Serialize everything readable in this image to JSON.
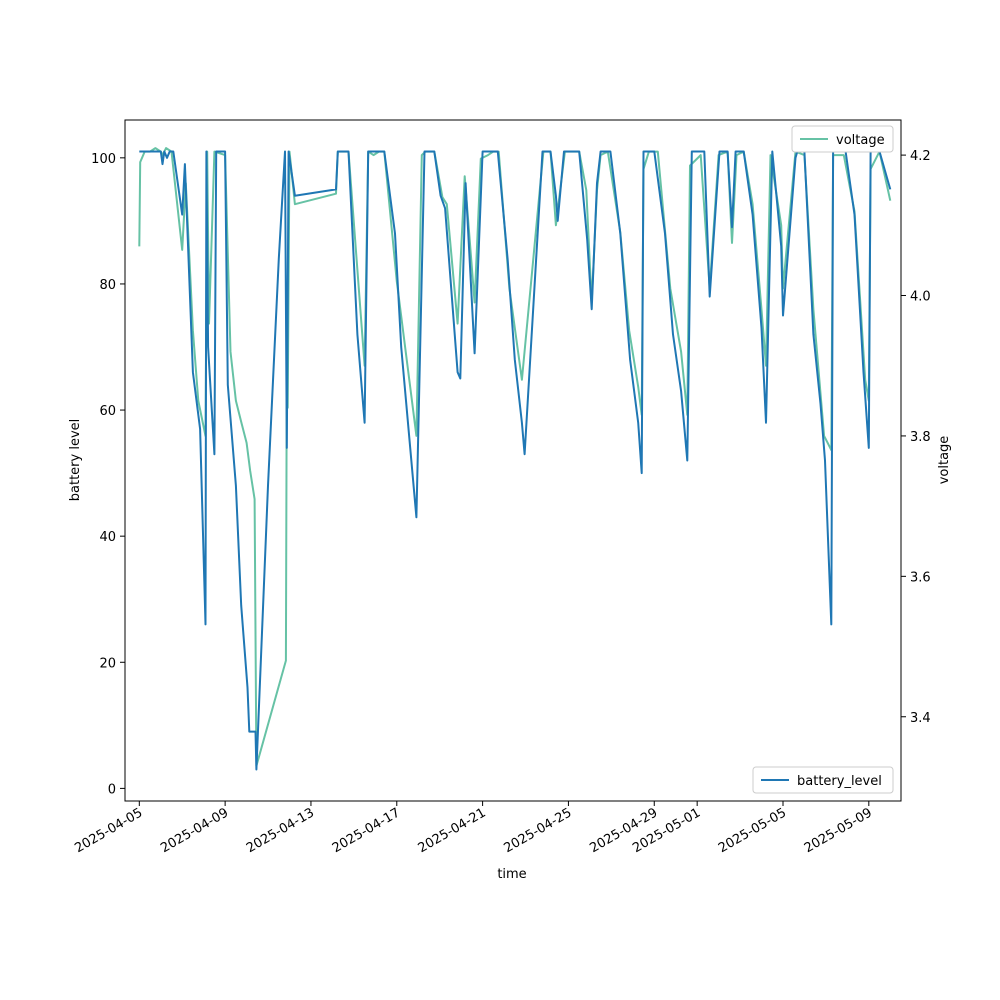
{
  "chart_data": {
    "type": "line",
    "xlabel": "time",
    "ylabel_left": "battery level",
    "ylabel_right": "voltage",
    "xlim": [
      "2025-04-04T08:00",
      "2025-05-10T12:00"
    ],
    "ylim_left": [
      -2,
      106
    ],
    "ylim_right": [
      3.28,
      4.25
    ],
    "grid": false,
    "x_ticks": [
      "2025-04-05",
      "2025-04-09",
      "2025-04-13",
      "2025-04-17",
      "2025-04-21",
      "2025-04-25",
      "2025-04-29",
      "2025-05-01",
      "2025-05-05",
      "2025-05-09"
    ],
    "y_ticks_left": [
      0,
      20,
      40,
      60,
      80,
      100
    ],
    "y_ticks_right": [
      3.4,
      3.6,
      3.8,
      4.0,
      4.2
    ],
    "legends": [
      {
        "position": "lower-right",
        "entries": [
          "battery_level"
        ]
      },
      {
        "position": "upper-right",
        "entries": [
          "voltage"
        ]
      }
    ],
    "series": [
      {
        "name": "battery_level",
        "axis": "left",
        "color": "#1f77b4",
        "points": [
          [
            "2025-04-05T00:00",
            101
          ],
          [
            "2025-04-06T00:00",
            101
          ],
          [
            "2025-04-06T02:00",
            99
          ],
          [
            "2025-04-06T04:00",
            101
          ],
          [
            "2025-04-06T07:00",
            100
          ],
          [
            "2025-04-06T10:00",
            101
          ],
          [
            "2025-04-06T14:00",
            101
          ],
          [
            "2025-04-07T00:00",
            91
          ],
          [
            "2025-04-07T03:00",
            99
          ],
          [
            "2025-04-07T12:00",
            66
          ],
          [
            "2025-04-07T20:00",
            57
          ],
          [
            "2025-04-08T02:00",
            26
          ],
          [
            "2025-04-08T03:00",
            101
          ],
          [
            "2025-04-08T05:00",
            70
          ],
          [
            "2025-04-08T12:00",
            53
          ],
          [
            "2025-04-08T14:00",
            101
          ],
          [
            "2025-04-09T00:00",
            101
          ],
          [
            "2025-04-09T03:00",
            64
          ],
          [
            "2025-04-09T12:00",
            48
          ],
          [
            "2025-04-09T18:00",
            29
          ],
          [
            "2025-04-10T01:00",
            16
          ],
          [
            "2025-04-10T03:00",
            9
          ],
          [
            "2025-04-10T10:00",
            9
          ],
          [
            "2025-04-10T11:00",
            3
          ],
          [
            "2025-04-11T00:00",
            48
          ],
          [
            "2025-04-11T12:00",
            84
          ],
          [
            "2025-04-11T19:00",
            101
          ],
          [
            "2025-04-11T21:00",
            54
          ],
          [
            "2025-04-11T23:00",
            101
          ],
          [
            "2025-04-12T06:00",
            94
          ],
          [
            "2025-04-14T04:00",
            95
          ],
          [
            "2025-04-14T06:00",
            101
          ],
          [
            "2025-04-14T18:00",
            101
          ],
          [
            "2025-04-15T04:00",
            72
          ],
          [
            "2025-04-15T12:00",
            58
          ],
          [
            "2025-04-15T16:00",
            101
          ],
          [
            "2025-04-16T10:00",
            101
          ],
          [
            "2025-04-16T22:00",
            88
          ],
          [
            "2025-04-17T05:00",
            70
          ],
          [
            "2025-04-17T22:00",
            43
          ],
          [
            "2025-04-18T07:00",
            101
          ],
          [
            "2025-04-18T18:00",
            101
          ],
          [
            "2025-04-19T01:00",
            94
          ],
          [
            "2025-04-19T06:00",
            92
          ],
          [
            "2025-04-19T20:00",
            66
          ],
          [
            "2025-04-19T23:00",
            65
          ],
          [
            "2025-04-20T05:00",
            96
          ],
          [
            "2025-04-20T15:00",
            69
          ],
          [
            "2025-04-21T00:00",
            101
          ],
          [
            "2025-04-21T17:00",
            101
          ],
          [
            "2025-04-22T04:00",
            84
          ],
          [
            "2025-04-22T12:00",
            68
          ],
          [
            "2025-04-22T20:00",
            58
          ],
          [
            "2025-04-22T23:00",
            53
          ],
          [
            "2025-04-23T19:00",
            101
          ],
          [
            "2025-04-24T04:00",
            101
          ],
          [
            "2025-04-24T10:00",
            94
          ],
          [
            "2025-04-24T12:00",
            90
          ],
          [
            "2025-04-24T19:00",
            101
          ],
          [
            "2025-04-25T12:00",
            101
          ],
          [
            "2025-04-25T21:00",
            87
          ],
          [
            "2025-04-26T02:00",
            76
          ],
          [
            "2025-04-26T08:00",
            96
          ],
          [
            "2025-04-26T12:00",
            101
          ],
          [
            "2025-04-26T23:00",
            101
          ],
          [
            "2025-04-27T10:00",
            88
          ],
          [
            "2025-04-27T21:00",
            68
          ],
          [
            "2025-04-28T06:00",
            58
          ],
          [
            "2025-04-28T10:00",
            50
          ],
          [
            "2025-04-28T12:00",
            101
          ],
          [
            "2025-04-29T00:00",
            101
          ],
          [
            "2025-04-29T12:00",
            88
          ],
          [
            "2025-04-29T21:00",
            72
          ],
          [
            "2025-04-30T06:00",
            63
          ],
          [
            "2025-04-30T13:00",
            52
          ],
          [
            "2025-04-30T18:00",
            101
          ],
          [
            "2025-05-01T08:00",
            101
          ],
          [
            "2025-05-01T14:00",
            78
          ],
          [
            "2025-05-02T01:00",
            101
          ],
          [
            "2025-05-02T10:00",
            101
          ],
          [
            "2025-05-02T15:00",
            89
          ],
          [
            "2025-05-02T19:00",
            101
          ],
          [
            "2025-05-03T04:00",
            101
          ],
          [
            "2025-05-03T14:00",
            91
          ],
          [
            "2025-05-04T00:00",
            73
          ],
          [
            "2025-05-04T05:00",
            58
          ],
          [
            "2025-05-04T12:00",
            101
          ],
          [
            "2025-05-04T22:00",
            86
          ],
          [
            "2025-05-05T00:00",
            75
          ],
          [
            "2025-05-05T05:00",
            84
          ],
          [
            "2025-05-05T14:00",
            100
          ],
          [
            "2025-05-05T16:00",
            101
          ],
          [
            "2025-05-06T00:00",
            101
          ],
          [
            "2025-05-06T10:00",
            72
          ],
          [
            "2025-05-06T18:00",
            61
          ],
          [
            "2025-05-06T23:00",
            52
          ],
          [
            "2025-05-07T06:00",
            26
          ],
          [
            "2025-05-07T08:00",
            101
          ],
          [
            "2025-05-07T22:00",
            101
          ],
          [
            "2025-05-08T08:00",
            91
          ],
          [
            "2025-05-08T18:00",
            66
          ],
          [
            "2025-05-09T00:00",
            54
          ],
          [
            "2025-05-09T02:00",
            101
          ],
          [
            "2025-05-09T12:00",
            101
          ],
          [
            "2025-05-10T00:00",
            95
          ]
        ]
      },
      {
        "name": "voltage",
        "axis": "right",
        "color": "#66c2a5",
        "points": [
          [
            "2025-04-05T00:00",
            4.07
          ],
          [
            "2025-04-05T01:00",
            4.19
          ],
          [
            "2025-04-05T06:00",
            4.205
          ],
          [
            "2025-04-05T12:00",
            4.205
          ],
          [
            "2025-04-05T18:00",
            4.21
          ],
          [
            "2025-04-06T00:00",
            4.205
          ],
          [
            "2025-04-06T02:00",
            4.2
          ],
          [
            "2025-04-06T06:00",
            4.21
          ],
          [
            "2025-04-06T12:00",
            4.205
          ],
          [
            "2025-04-07T00:00",
            4.065
          ],
          [
            "2025-04-07T04:00",
            4.16
          ],
          [
            "2025-04-07T12:00",
            3.95
          ],
          [
            "2025-04-07T18:00",
            3.85
          ],
          [
            "2025-04-08T02:00",
            3.8
          ],
          [
            "2025-04-08T04:00",
            4.205
          ],
          [
            "2025-04-08T06:00",
            3.96
          ],
          [
            "2025-04-08T12:00",
            4.205
          ],
          [
            "2025-04-09T00:00",
            4.2
          ],
          [
            "2025-04-09T06:00",
            3.92
          ],
          [
            "2025-04-09T12:00",
            3.85
          ],
          [
            "2025-04-09T18:00",
            3.82
          ],
          [
            "2025-04-10T00:00",
            3.79
          ],
          [
            "2025-04-10T04:00",
            3.75
          ],
          [
            "2025-04-10T09:00",
            3.71
          ],
          [
            "2025-04-10T11:00",
            3.33
          ],
          [
            "2025-04-11T20:00",
            3.48
          ],
          [
            "2025-04-11T21:00",
            3.9
          ],
          [
            "2025-04-11T22:00",
            3.84
          ],
          [
            "2025-04-12T00:00",
            4.205
          ],
          [
            "2025-04-12T06:00",
            4.13
          ],
          [
            "2025-04-14T04:00",
            4.145
          ],
          [
            "2025-04-14T06:00",
            4.205
          ],
          [
            "2025-04-14T18:00",
            4.205
          ],
          [
            "2025-04-15T12:00",
            3.9
          ],
          [
            "2025-04-15T16:00",
            4.205
          ],
          [
            "2025-04-15T22:00",
            4.2
          ],
          [
            "2025-04-16T04:00",
            4.205
          ],
          [
            "2025-04-16T10:00",
            4.205
          ],
          [
            "2025-04-17T00:00",
            4.02
          ],
          [
            "2025-04-17T12:00",
            3.9
          ],
          [
            "2025-04-17T22:00",
            3.8
          ],
          [
            "2025-04-18T04:00",
            4.2
          ],
          [
            "2025-04-18T08:00",
            4.205
          ],
          [
            "2025-04-18T18:00",
            4.205
          ],
          [
            "2025-04-19T03:00",
            4.14
          ],
          [
            "2025-04-19T08:00",
            4.13
          ],
          [
            "2025-04-19T20:00",
            3.96
          ],
          [
            "2025-04-20T04:00",
            4.17
          ],
          [
            "2025-04-20T15:00",
            3.99
          ],
          [
            "2025-04-20T22:00",
            4.195
          ],
          [
            "2025-04-21T06:00",
            4.2
          ],
          [
            "2025-04-21T12:00",
            4.205
          ],
          [
            "2025-04-21T18:00",
            4.205
          ],
          [
            "2025-04-22T06:00",
            4.01
          ],
          [
            "2025-04-22T20:00",
            3.88
          ],
          [
            "2025-04-23T20:00",
            4.205
          ],
          [
            "2025-04-24T04:00",
            4.205
          ],
          [
            "2025-04-24T10:00",
            4.1
          ],
          [
            "2025-04-24T20:00",
            4.205
          ],
          [
            "2025-04-25T12:00",
            4.205
          ],
          [
            "2025-04-25T20:00",
            4.15
          ],
          [
            "2025-04-26T02:00",
            3.99
          ],
          [
            "2025-04-26T08:00",
            4.15
          ],
          [
            "2025-04-26T12:00",
            4.2
          ],
          [
            "2025-04-26T20:00",
            4.205
          ],
          [
            "2025-04-27T10:00",
            4.09
          ],
          [
            "2025-04-27T20:00",
            3.95
          ],
          [
            "2025-04-28T06:00",
            3.87
          ],
          [
            "2025-04-28T10:00",
            3.83
          ],
          [
            "2025-04-28T12:00",
            4.18
          ],
          [
            "2025-04-28T18:00",
            4.205
          ],
          [
            "2025-04-29T04:00",
            4.205
          ],
          [
            "2025-04-29T18:00",
            4.01
          ],
          [
            "2025-04-30T06:00",
            3.92
          ],
          [
            "2025-04-30T13:00",
            3.83
          ],
          [
            "2025-04-30T16:00",
            4.185
          ],
          [
            "2025-05-01T04:00",
            4.2
          ],
          [
            "2025-05-01T14:00",
            4.01
          ],
          [
            "2025-05-02T00:00",
            4.2
          ],
          [
            "2025-05-02T10:00",
            4.205
          ],
          [
            "2025-05-02T15:00",
            4.075
          ],
          [
            "2025-05-02T20:00",
            4.2
          ],
          [
            "2025-05-03T04:00",
            4.205
          ],
          [
            "2025-05-03T14:00",
            4.13
          ],
          [
            "2025-05-04T00:00",
            3.98
          ],
          [
            "2025-05-04T05:00",
            3.9
          ],
          [
            "2025-05-04T10:00",
            4.2
          ],
          [
            "2025-05-04T22:00",
            4.1
          ],
          [
            "2025-05-05T00:00",
            4.01
          ],
          [
            "2025-05-05T14:00",
            4.205
          ],
          [
            "2025-05-06T00:00",
            4.2
          ],
          [
            "2025-05-06T10:00",
            3.98
          ],
          [
            "2025-05-06T22:00",
            3.8
          ],
          [
            "2025-05-07T06:00",
            3.78
          ],
          [
            "2025-05-07T08:00",
            4.2
          ],
          [
            "2025-05-07T20:00",
            4.2
          ],
          [
            "2025-05-08T08:00",
            4.12
          ],
          [
            "2025-05-08T20:00",
            3.88
          ],
          [
            "2025-05-09T00:00",
            3.85
          ],
          [
            "2025-05-09T02:00",
            4.18
          ],
          [
            "2025-05-09T12:00",
            4.205
          ],
          [
            "2025-05-10T00:00",
            4.135
          ]
        ]
      }
    ]
  }
}
